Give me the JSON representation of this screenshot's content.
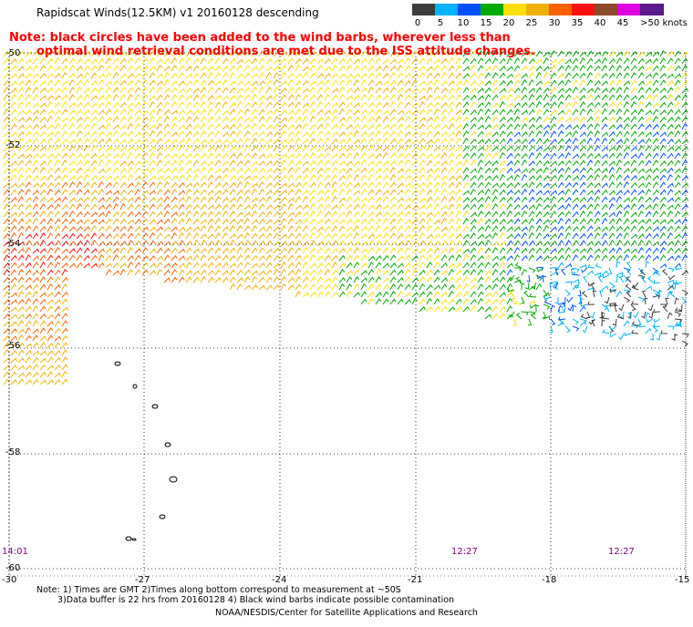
{
  "header": {
    "title": "Rapidscat Winds(12.5KM)  v1  20160128  descending",
    "note_line1": "Note: black circles have been added to the wind barbs, wherever less than",
    "note_line2": "optimal wind retrieval conditions are met due to the ISS attitude changes."
  },
  "legend": {
    "labels": [
      "0",
      "5",
      "10",
      "15",
      "20",
      "25",
      "30",
      "35",
      "40",
      "45",
      ">50 knots"
    ],
    "colors": [
      "#3c3c3c",
      "#00b4ff",
      "#0050ff",
      "#00aa00",
      "#ffe000",
      "#f0b000",
      "#ff6000",
      "#ff1010",
      "#8b4a2a",
      "#e000e0",
      "#5a1a8a"
    ]
  },
  "axes": {
    "lat_labels": [
      "-50",
      "-52",
      "-54",
      "-56",
      "-58",
      "-60"
    ],
    "lon_labels": [
      "-30",
      "-27",
      "-24",
      "-21",
      "-18",
      "-15"
    ]
  },
  "times": [
    "14:01",
    "12:27",
    "12:27"
  ],
  "footer": {
    "line1": "Note: 1) Times are GMT 2)Times along bottom correspond to measurement at ~50S",
    "line2": "3)Data buffer is 22 hrs from 20160128 4) Black wind barbs indicate possible contamination",
    "line3": "NOAA/NESDIS/Center for Satellite Applications and Research"
  }
}
